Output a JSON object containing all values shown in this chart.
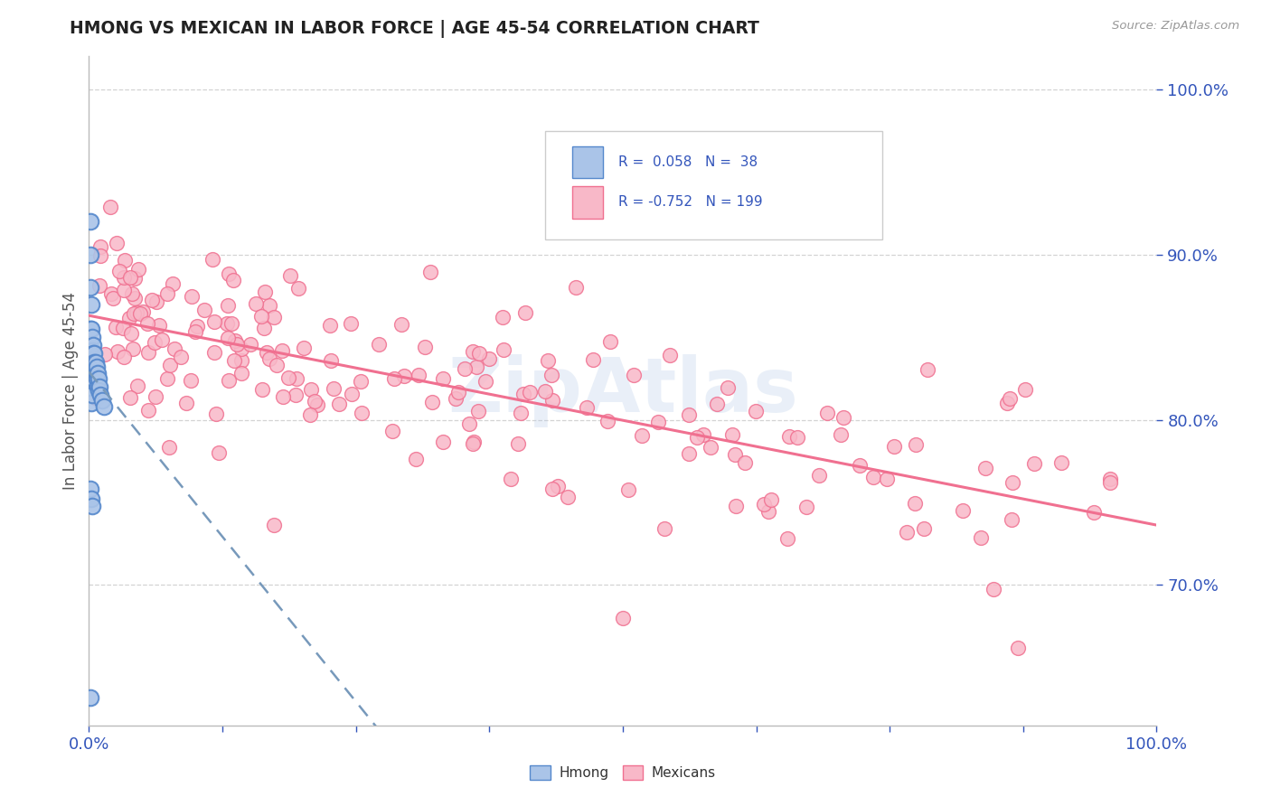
{
  "title": "HMONG VS MEXICAN IN LABOR FORCE | AGE 45-54 CORRELATION CHART",
  "source": "Source: ZipAtlas.com",
  "ylabel": "In Labor Force | Age 45-54",
  "xlim": [
    0.0,
    1.0
  ],
  "ylim": [
    0.615,
    1.02
  ],
  "y_ticks": [
    0.7,
    0.8,
    0.9,
    1.0
  ],
  "hmong_R": 0.058,
  "hmong_N": 38,
  "mexican_R": -0.752,
  "mexican_N": 199,
  "hmong_fill_color": "#aac4e8",
  "hmong_edge_color": "#5588cc",
  "mexican_fill_color": "#f8b8c8",
  "mexican_edge_color": "#f07090",
  "hmong_trend_color": "#7799bb",
  "mexican_trend_color": "#f07090",
  "watermark": "ZipAtlas",
  "background_color": "#ffffff",
  "grid_color": "#c8c8c8",
  "legend_text_color": "#3355bb",
  "title_color": "#222222",
  "axis_label_color": "#3355bb",
  "tick_label_color": "#3355bb"
}
